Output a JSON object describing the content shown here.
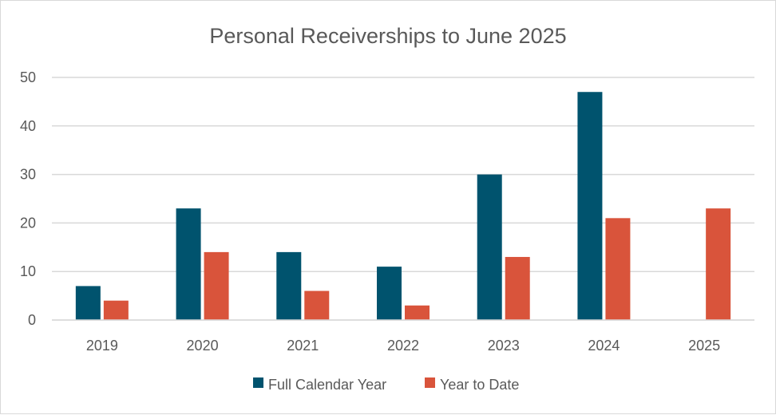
{
  "chart_data": {
    "type": "bar",
    "title": "Personal Receiverships to June 2025",
    "xlabel": "",
    "ylabel": "",
    "categories": [
      "2019",
      "2020",
      "2021",
      "2022",
      "2023",
      "2024",
      "2025"
    ],
    "series": [
      {
        "name": "Full Calendar Year",
        "color": "#00536e",
        "values": [
          7,
          23,
          14,
          11,
          30,
          47,
          null
        ]
      },
      {
        "name": "Year to Date",
        "color": "#d9543b",
        "values": [
          4,
          14,
          6,
          3,
          13,
          21,
          23
        ]
      }
    ],
    "ylim": [
      0,
      50
    ],
    "yticks": [
      "0",
      "10",
      "20",
      "30",
      "40",
      "50"
    ],
    "grid": true,
    "legend_position": "bottom"
  }
}
